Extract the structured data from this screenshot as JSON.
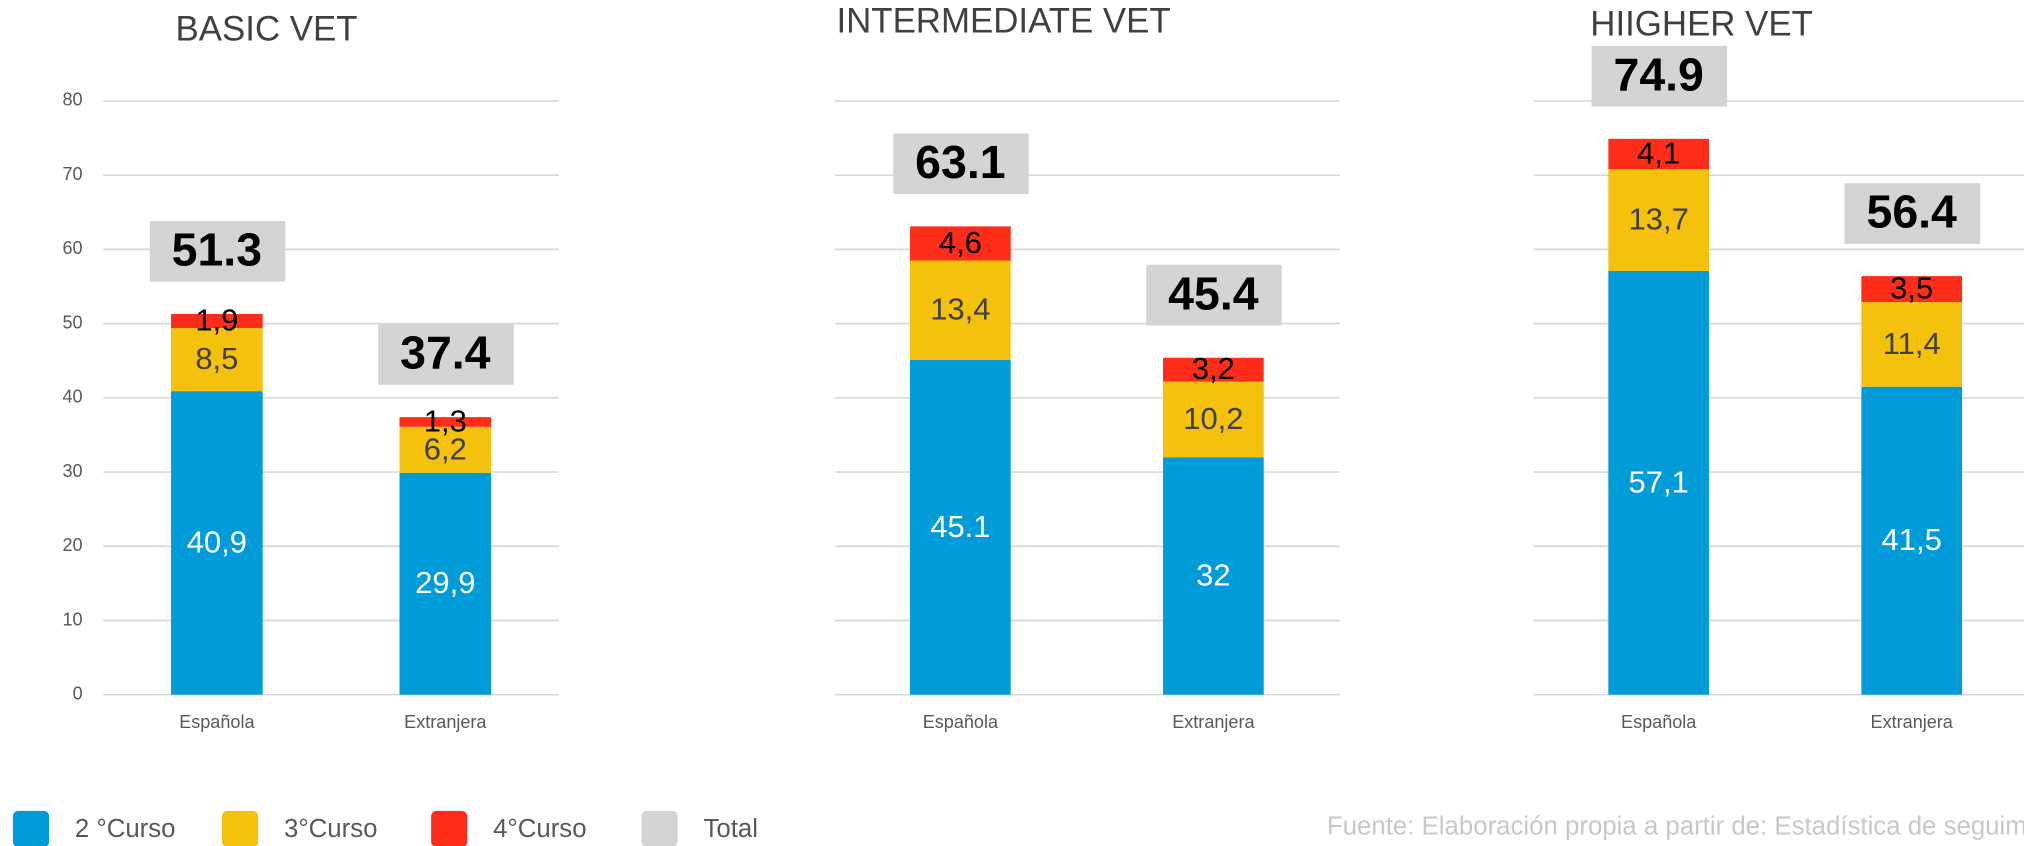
{
  "chart_data": [
    {
      "type": "bar",
      "stacked": true,
      "title": "BASIC VET",
      "categories": [
        "Española",
        "Extranjera"
      ],
      "series": [
        {
          "values": [
            40.9,
            29.9
          ],
          "value_labels": [
            "40,9",
            "29,9"
          ]
        },
        {
          "values": [
            8.5,
            6.2
          ],
          "value_labels": [
            "8,5",
            "6,2"
          ]
        },
        {
          "values": [
            1.9,
            1.3
          ],
          "value_labels": [
            "1,9",
            "1,3"
          ]
        }
      ],
      "totals": [
        51.3,
        37.4
      ],
      "ylim": [
        0,
        80
      ],
      "yticks": [
        0,
        10,
        20,
        30,
        40,
        50,
        60,
        70,
        80
      ],
      "tick_labels": true,
      "grid": true
    },
    {
      "type": "bar",
      "stacked": true,
      "title": "INTERMEDIATE VET",
      "categories": [
        "Española",
        "Extranjera"
      ],
      "series": [
        {
          "values": [
            45.1,
            32
          ]
        },
        {
          "values": [
            13.4,
            10.2
          ],
          "value_labels": [
            "13,4",
            "10,2"
          ]
        },
        {
          "values": [
            4.6,
            3.2
          ],
          "value_labels": [
            "4,6",
            "3,2"
          ]
        }
      ],
      "totals": [
        63.1,
        45.4
      ],
      "ylim": [
        0,
        80
      ],
      "yticks": [
        0,
        10,
        20,
        30,
        40,
        50,
        60,
        70,
        80
      ],
      "tick_labels": false,
      "grid": true
    },
    {
      "type": "bar",
      "stacked": true,
      "title": "HIIGHER VET",
      "categories": [
        "Española",
        "Extranjera"
      ],
      "series": [
        {
          "values": [
            57.1,
            41.5
          ],
          "value_labels": [
            "57,1",
            "41,5"
          ]
        },
        {
          "values": [
            13.7,
            11.4
          ],
          "value_labels": [
            "13,7",
            "11,4"
          ]
        },
        {
          "values": [
            4.1,
            3.5
          ],
          "value_labels": [
            "4,1",
            "3,5"
          ]
        }
      ],
      "totals": [
        74.9,
        56.4
      ],
      "ylim": [
        0,
        80
      ],
      "yticks": [
        0,
        10,
        20,
        30,
        40,
        50,
        60,
        70,
        80
      ],
      "tick_labels": false,
      "grid": true
    }
  ],
  "legend": [
    {
      "name": "2 °Curso",
      "color": "#009bd9"
    },
    {
      "name": "3°Curso",
      "color": "#f4c20d"
    },
    {
      "name": "4°Curso",
      "color": "#fe2d19"
    },
    {
      "name": "Total",
      "color": "#d4d4d4"
    }
  ],
  "source": "Fuente: Elaboración propia a partir de: Estadística de seguim"
}
